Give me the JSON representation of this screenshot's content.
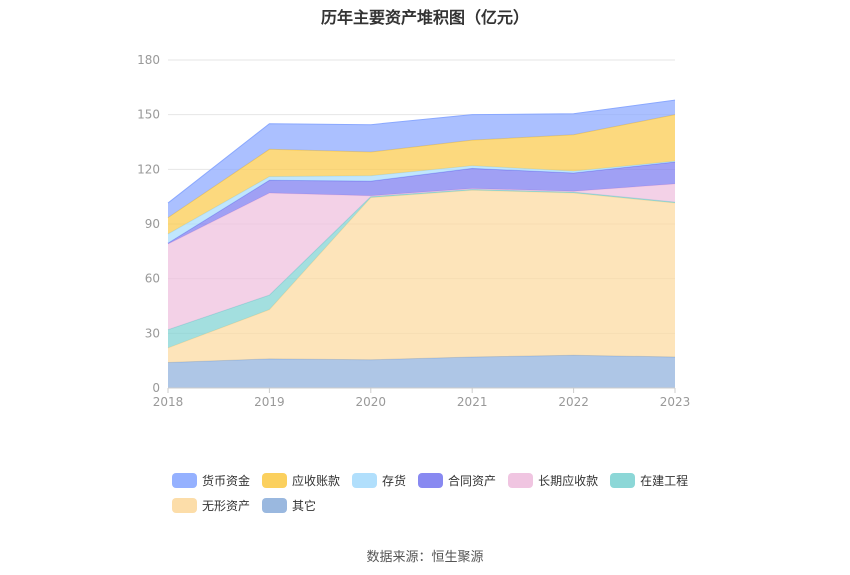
{
  "chart_data": {
    "type": "area",
    "stacked": true,
    "title": "历年主要资产堆积图（亿元）",
    "x": [
      "2018",
      "2019",
      "2020",
      "2021",
      "2022",
      "2023"
    ],
    "ylim": [
      0,
      180
    ],
    "yticks": [
      0,
      30,
      60,
      90,
      120,
      150,
      180
    ],
    "grid": true,
    "legend_position": "bottom",
    "series": [
      {
        "name": "其它",
        "color": "#8fb0dc",
        "values": [
          14,
          16,
          15.5,
          17,
          18,
          17
        ]
      },
      {
        "name": "无形资产",
        "color": "#fcd9a0",
        "values": [
          8,
          27,
          89,
          91.5,
          89,
          84.5
        ]
      },
      {
        "name": "在建工程",
        "color": "#7fd3d3",
        "values": [
          10,
          8,
          0.5,
          0.5,
          0.5,
          0.5
        ]
      },
      {
        "name": "长期应收款",
        "color": "#eebfde",
        "values": [
          47,
          56,
          0.5,
          0.5,
          0.5,
          10
        ]
      },
      {
        "name": "合同资产",
        "color": "#7b7cf0",
        "values": [
          0.5,
          7,
          8,
          11,
          10,
          12
        ]
      },
      {
        "name": "存货",
        "color": "#a8dcfc",
        "values": [
          5,
          2,
          3,
          1.5,
          1,
          0.5
        ]
      },
      {
        "name": "应收账款",
        "color": "#fbcb4c",
        "values": [
          9,
          15,
          13,
          14,
          20,
          25.5
        ]
      },
      {
        "name": "货币资金",
        "color": "#8aa8ff",
        "values": [
          8,
          14,
          15,
          14,
          11.5,
          8
        ]
      }
    ],
    "legend_order": [
      "货币资金",
      "应收账款",
      "存货",
      "合同资产",
      "长期应收款",
      "在建工程",
      "无形资产",
      "其它"
    ]
  },
  "footer": {
    "source": "数据来源：恒生聚源"
  }
}
